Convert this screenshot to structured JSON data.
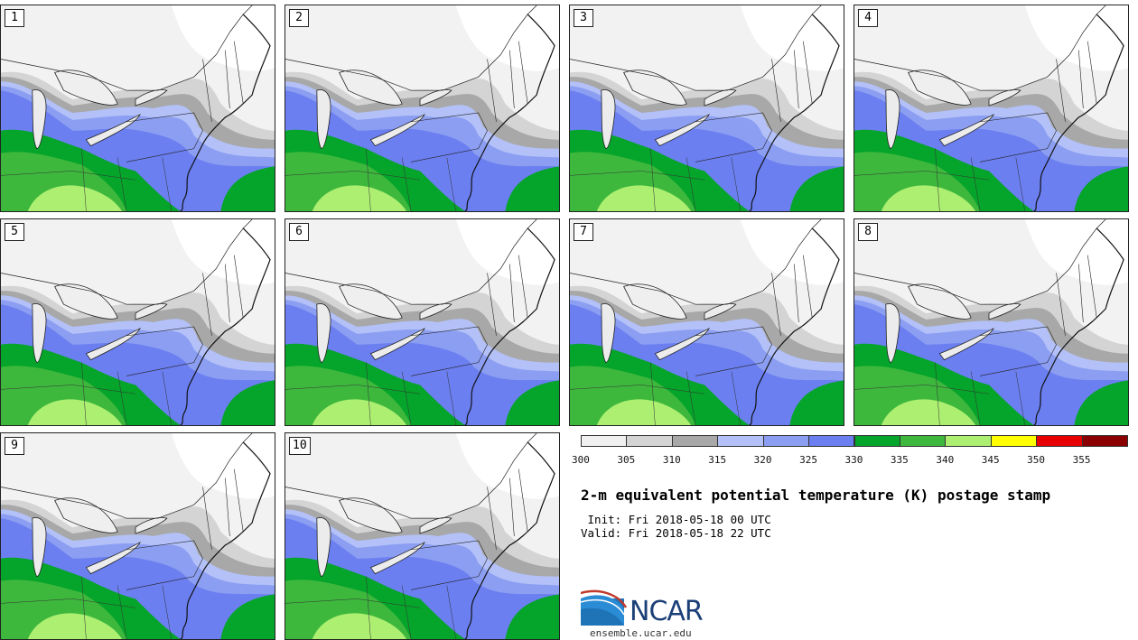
{
  "panels": [
    {
      "label": "1"
    },
    {
      "label": "2"
    },
    {
      "label": "3"
    },
    {
      "label": "4"
    },
    {
      "label": "5"
    },
    {
      "label": "6"
    },
    {
      "label": "7"
    },
    {
      "label": "8"
    },
    {
      "label": "9"
    },
    {
      "label": "10"
    }
  ],
  "colorbar": {
    "colors": [
      "#f0f0f0",
      "#d4d4d4",
      "#a8a8a8",
      "#b3c1f8",
      "#8c9ef2",
      "#6b7ff0",
      "#05a42a",
      "#3db83d",
      "#adef71",
      "#ffff00",
      "#e60000",
      "#8a0000"
    ],
    "ticks": [
      "300",
      "305",
      "310",
      "315",
      "320",
      "325",
      "330",
      "335",
      "340",
      "345",
      "350",
      "355"
    ]
  },
  "title": "2-m equivalent potential temperature (K) postage stamp",
  "init_text": " Init: Fri 2018-05-18 00 UTC",
  "valid_text": "Valid: Fri 2018-05-18 22 UTC",
  "logo": {
    "name": "ncar-logo",
    "text": "NCAR"
  },
  "website": "ensemble.ucar.edu"
}
